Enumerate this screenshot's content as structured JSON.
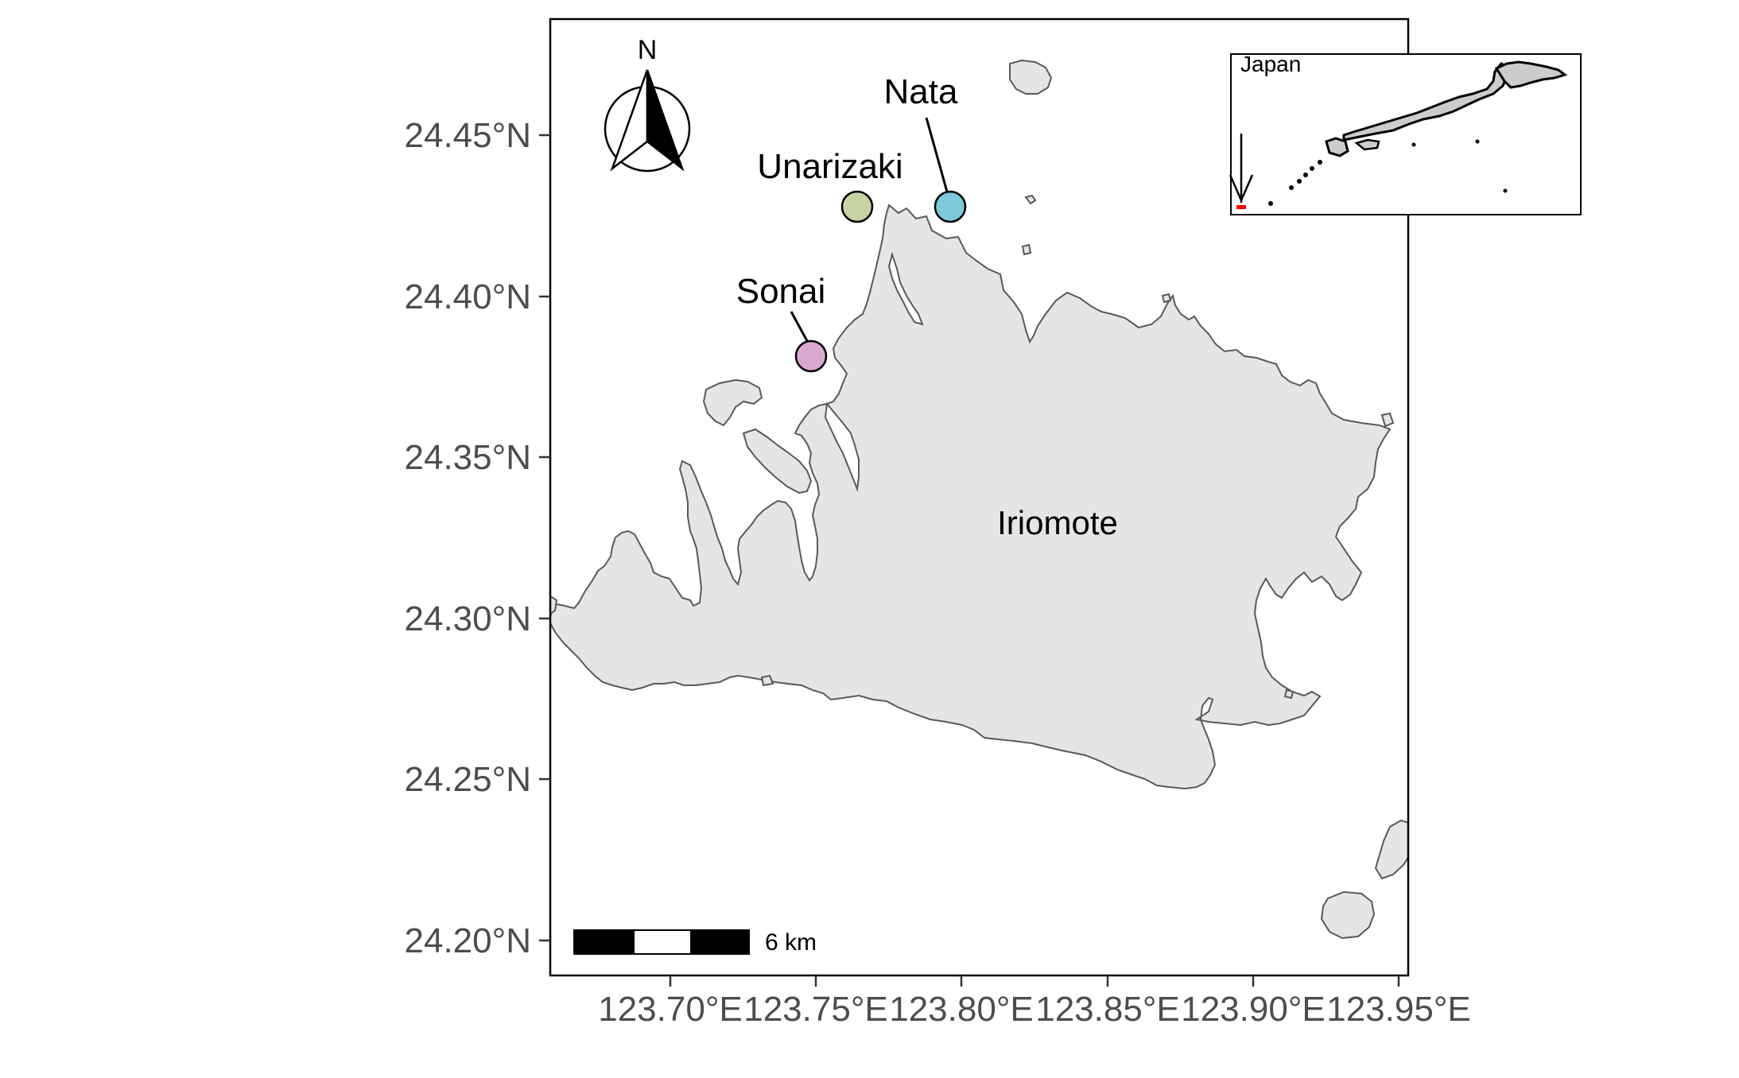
{
  "map": {
    "y_axis": {
      "ticks": [
        "24.45°N",
        "24.40°N",
        "24.35°N",
        "24.30°N",
        "24.25°N",
        "24.20°N"
      ]
    },
    "x_axis": {
      "ticks": [
        "123.70°E",
        "123.75°E",
        "123.80°E",
        "123.85°E",
        "123.90°E",
        "123.95°E"
      ]
    },
    "north_arrow": {
      "label": "N"
    },
    "island_label": "Iriomote",
    "sites": [
      {
        "name": "Nata",
        "color": "#7ec8dc"
      },
      {
        "name": "Unarizaki",
        "color": "#c8d3a3"
      },
      {
        "name": "Sonai",
        "color": "#dba9cf"
      }
    ],
    "scale_bar": {
      "label": "6 km"
    },
    "inset": {
      "title": "Japan",
      "marker_color": "#ff0000"
    },
    "colors": {
      "land": "#e5e5e5",
      "coast": "#595959",
      "frame": "#000000"
    }
  }
}
